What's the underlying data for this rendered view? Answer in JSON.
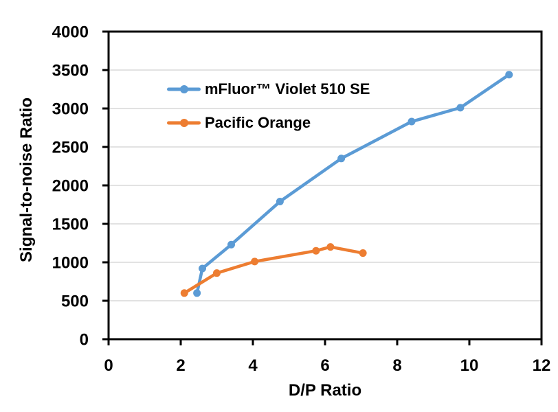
{
  "chart_data": {
    "type": "line",
    "title": "",
    "xlabel": "D/P Ratio",
    "ylabel": "Signal-to-noise Ratio",
    "xlim": [
      0,
      12
    ],
    "ylim": [
      0,
      4000
    ],
    "x_ticks": [
      0,
      2,
      4,
      6,
      8,
      10,
      12
    ],
    "y_ticks": [
      0,
      500,
      1000,
      1500,
      2000,
      2500,
      3000,
      3500,
      4000
    ],
    "grid": "horizontal-major-only",
    "legend_position": "inside-top-left",
    "series": [
      {
        "name": "mFluor™ Violet 510 SE",
        "color": "#5B9BD5",
        "marker": "circle",
        "points": [
          [
            2.45,
            600
          ],
          [
            2.6,
            920
          ],
          [
            3.4,
            1230
          ],
          [
            4.75,
            1790
          ],
          [
            6.45,
            2350
          ],
          [
            8.4,
            2830
          ],
          [
            9.75,
            3010
          ],
          [
            11.1,
            3440
          ]
        ]
      },
      {
        "name": "Pacific Orange",
        "color": "#ED7D31",
        "marker": "circle",
        "points": [
          [
            2.1,
            600
          ],
          [
            3.0,
            860
          ],
          [
            4.05,
            1010
          ],
          [
            5.75,
            1150
          ],
          [
            6.15,
            1200
          ],
          [
            7.05,
            1120
          ]
        ]
      }
    ],
    "colors": {
      "gridline": "#D9D9D9",
      "axis": "#000000",
      "text": "#000000",
      "background": "#FFFFFF"
    }
  }
}
